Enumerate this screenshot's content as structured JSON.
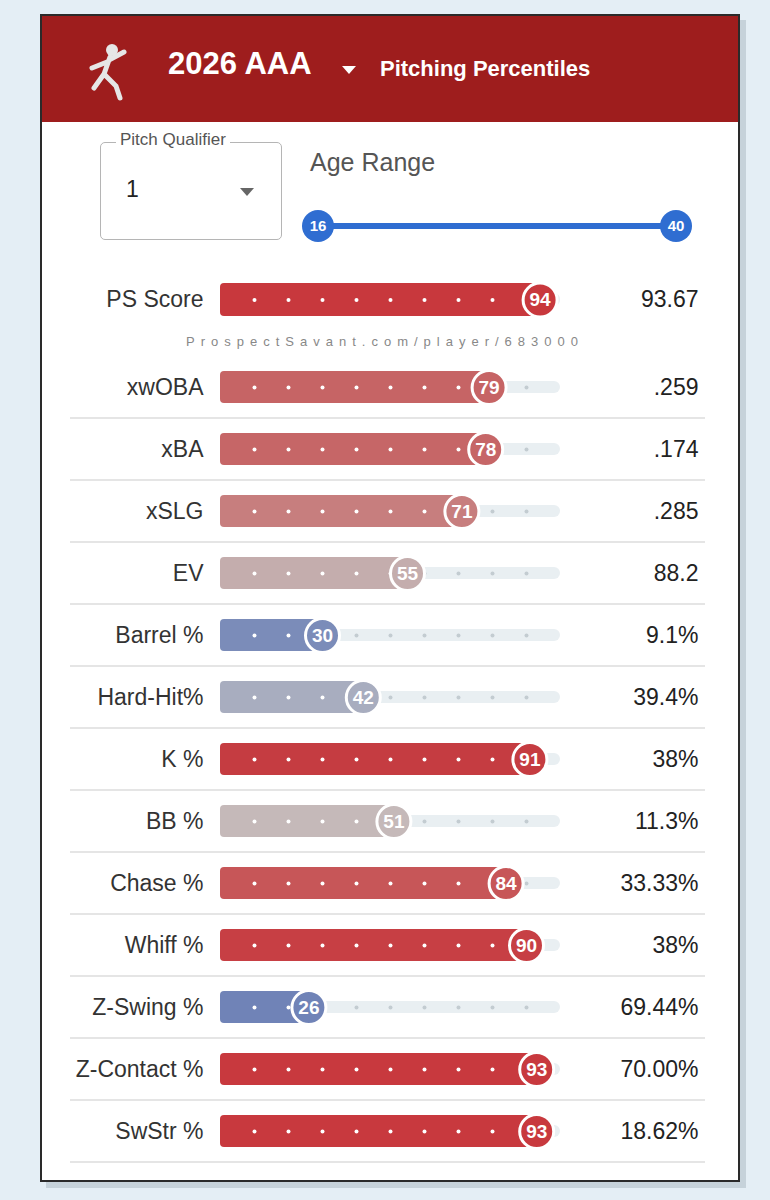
{
  "header": {
    "season": "2026 AAA",
    "title": "Pitching Percentiles"
  },
  "controls": {
    "pitch_qualifier": {
      "label": "Pitch Qualifier",
      "value": "1"
    },
    "age_range": {
      "label": "Age Range",
      "min": 16,
      "max": 40
    }
  },
  "watermark": "ProspectSavant.com/player/683000",
  "chart_data": {
    "type": "bar",
    "orientation": "horizontal",
    "categories": [
      "PS Score",
      "xwOBA",
      "xBA",
      "xSLG",
      "EV",
      "Barrel %",
      "Hard-Hit%",
      "K %",
      "BB %",
      "Chase %",
      "Whiff %",
      "Z-Swing %",
      "Z-Contact %",
      "SwStr %"
    ],
    "values": [
      94,
      79,
      78,
      71,
      55,
      30,
      42,
      91,
      51,
      84,
      90,
      26,
      93,
      93
    ],
    "stats": [
      "93.67",
      ".259",
      ".174",
      ".285",
      "88.2",
      "9.1%",
      "39.4%",
      "38%",
      "11.3%",
      "33.33%",
      "38%",
      "69.44%",
      "70.00%",
      "18.62%"
    ],
    "colors": [
      "#c8383d",
      "#c66465",
      "#c66667",
      "#c77e7e",
      "#c4adad",
      "#7b8cb9",
      "#a8adbf",
      "#c53c41",
      "#c5b9b9",
      "#c75658",
      "#c73f44",
      "#7083b7",
      "#c8393e",
      "#c8393e"
    ],
    "xlim": [
      0,
      100
    ],
    "xticks": [
      10,
      20,
      30,
      40,
      50,
      60,
      70,
      80,
      90
    ],
    "data_labels": true,
    "tick_labels": "y"
  }
}
